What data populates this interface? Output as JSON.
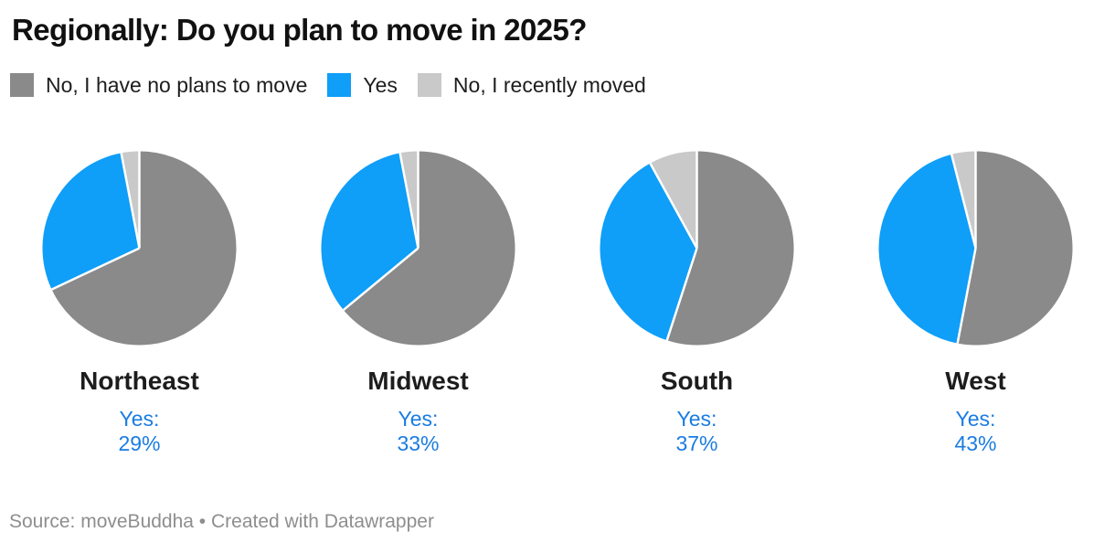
{
  "chart_data": {
    "type": "pie",
    "title": "Regionally: Do you plan to move in 2025?",
    "source_note": "Source: moveBuddha • Created with Datawrapper",
    "legend_position": "top",
    "value_label_color": "#1a7ce2",
    "separator_color": "#ffffff",
    "legend": [
      {
        "key": "no-plans",
        "label": "No, I have no plans to move",
        "color": "#8a8a8a"
      },
      {
        "key": "yes",
        "label": "Yes",
        "color": "#0f9ef8"
      },
      {
        "key": "recently-moved",
        "label": "No, I recently moved",
        "color": "#c9c9c9"
      }
    ],
    "pies": [
      {
        "region": "Northeast",
        "values": [
          68,
          29,
          3
        ],
        "yes_label": "Yes:",
        "yes_value": "29%"
      },
      {
        "region": "Midwest",
        "values": [
          64,
          33,
          3
        ],
        "yes_label": "Yes:",
        "yes_value": "33%"
      },
      {
        "region": "South",
        "values": [
          55,
          37,
          8
        ],
        "yes_label": "Yes:",
        "yes_value": "37%"
      },
      {
        "region": "West",
        "values": [
          53,
          43,
          4
        ],
        "yes_label": "Yes:",
        "yes_value": "43%"
      }
    ]
  }
}
